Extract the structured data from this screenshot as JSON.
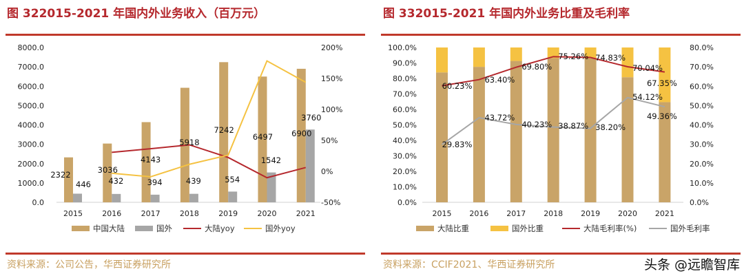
{
  "left_panel": {
    "title": "图 322015-2021 年国内外业务收入（百万元）",
    "source": "资料来源：公司公告，华西证券研究所"
  },
  "right_panel": {
    "title": "图 332015-2021 年国内外业务比重及毛利率",
    "source": "资料来源：CCIF2021、华西证券研究所"
  },
  "watermark": "头条 @远瞻智库",
  "colors": {
    "title": "#b5282d",
    "rule": "#c0392b",
    "source": "#c8a060",
    "mainland": "#c9a468",
    "overseas_bar": "#a6a6a6",
    "overseas_share": "#f5c242",
    "mainland_line": "#b5282d",
    "overseas_yoy": "#f5c242",
    "overseas_margin": "#a6a6a6"
  },
  "chart_data": [
    {
      "type": "bar",
      "categories": [
        "2015",
        "2016",
        "2017",
        "2018",
        "2019",
        "2020",
        "2021"
      ],
      "ylim": [
        0,
        8000
      ],
      "yticks": [
        "0.0",
        "1000.0",
        "2000.0",
        "3000.0",
        "4000.0",
        "5000.0",
        "6000.0",
        "7000.0",
        "8000.0"
      ],
      "y2lim": [
        -50,
        200
      ],
      "y2ticks": [
        "-50%",
        "0%",
        "50%",
        "100%",
        "150%",
        "200%"
      ],
      "legend_position": "bottom",
      "series": [
        {
          "name": "中国大陆",
          "type": "bar",
          "axis": "left",
          "values": [
            2322,
            3036,
            4143,
            5918,
            7242,
            6497,
            6900
          ],
          "labels": [
            "2322",
            "3036",
            "4143",
            "5918",
            "7242",
            "6497",
            "6900"
          ]
        },
        {
          "name": "国外",
          "type": "bar",
          "axis": "left",
          "values": [
            446,
            432,
            394,
            439,
            554,
            1542,
            3760
          ],
          "labels": [
            "446",
            "432",
            "394",
            "439",
            "554",
            "1542",
            "3760"
          ]
        },
        {
          "name": "大陆yoy",
          "type": "line",
          "axis": "right",
          "values": [
            null,
            30.7,
            36.5,
            42.8,
            22.4,
            -10.3,
            6.2
          ]
        },
        {
          "name": "国外yoy",
          "type": "line",
          "axis": "right",
          "values": [
            null,
            -3.1,
            -8.8,
            11.4,
            26.2,
            178.3,
            143.8
          ]
        }
      ]
    },
    {
      "type": "bar",
      "stacked": true,
      "categories": [
        "2015",
        "2016",
        "2017",
        "2018",
        "2019",
        "2020",
        "2021"
      ],
      "ylim": [
        0,
        100
      ],
      "yticks": [
        "0.0%",
        "10.0%",
        "20.0%",
        "30.0%",
        "40.0%",
        "50.0%",
        "60.0%",
        "70.0%",
        "80.0%",
        "90.0%",
        "100.0%"
      ],
      "y2lim": [
        0,
        80
      ],
      "y2ticks": [
        "0.0%",
        "10.0%",
        "20.0%",
        "30.0%",
        "40.0%",
        "50.0%",
        "60.0%",
        "70.0%",
        "80.0%"
      ],
      "legend_position": "bottom",
      "series": [
        {
          "name": "大陆比重",
          "type": "bar",
          "axis": "left",
          "values": [
            83.9,
            87.5,
            91.3,
            93.1,
            92.9,
            80.8,
            64.7
          ]
        },
        {
          "name": "国外比重",
          "type": "bar",
          "axis": "left",
          "values": [
            16.1,
            12.5,
            8.7,
            6.9,
            7.1,
            19.2,
            35.3
          ]
        },
        {
          "name": "大陆毛利率(%)",
          "type": "line",
          "axis": "right",
          "values": [
            60.23,
            63.4,
            69.8,
            75.26,
            74.83,
            70.04,
            67.35
          ],
          "labels": [
            "60.23%",
            "63.40%",
            "69.80%",
            "75.26%",
            "74.83%",
            "70.04%",
            "67.35%"
          ]
        },
        {
          "name": "国外毛利率",
          "type": "line",
          "axis": "right",
          "values": [
            29.83,
            43.72,
            40.23,
            38.87,
            38.2,
            54.12,
            49.36
          ],
          "labels": [
            "29.83%",
            "43.72%",
            "40.23%",
            "38.87%",
            "38.20%",
            "54.12%",
            "49.36%"
          ]
        }
      ]
    }
  ]
}
